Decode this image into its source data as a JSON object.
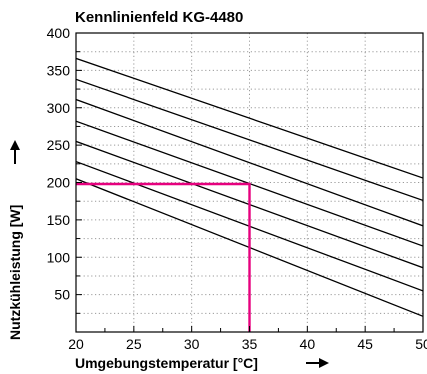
{
  "chart_data": {
    "type": "line",
    "title": "Kennlinienfeld KG-4480",
    "xlabel": "Umgebungstemperatur [°C]",
    "ylabel": "Nutzkühleistung [W]",
    "xlim": [
      20,
      50
    ],
    "ylim": [
      0,
      400
    ],
    "xticks": [
      "20",
      "25",
      "30",
      "35",
      "40",
      "45",
      "50"
    ],
    "yticks": [
      "50",
      "100",
      "150",
      "200",
      "250",
      "300",
      "350",
      "400"
    ],
    "grid": true,
    "series": [
      {
        "x": [
          20,
          50
        ],
        "values": [
          205,
          21
        ]
      },
      {
        "x": [
          20,
          50
        ],
        "values": [
          228,
          55
        ]
      },
      {
        "x": [
          20,
          50
        ],
        "values": [
          255,
          86
        ]
      },
      {
        "x": [
          20,
          50
        ],
        "values": [
          282,
          115
        ]
      },
      {
        "x": [
          20,
          50
        ],
        "values": [
          311,
          142
        ]
      },
      {
        "x": [
          20,
          50
        ],
        "values": [
          338,
          176
        ]
      },
      {
        "x": [
          20,
          50
        ],
        "values": [
          366,
          206
        ]
      }
    ],
    "annotation": {
      "x": 35,
      "y": 198,
      "color": "#e6007e"
    },
    "colors": {
      "lines": "#000000",
      "grid": "#9a9a9a",
      "highlight": "#e6007e"
    }
  }
}
